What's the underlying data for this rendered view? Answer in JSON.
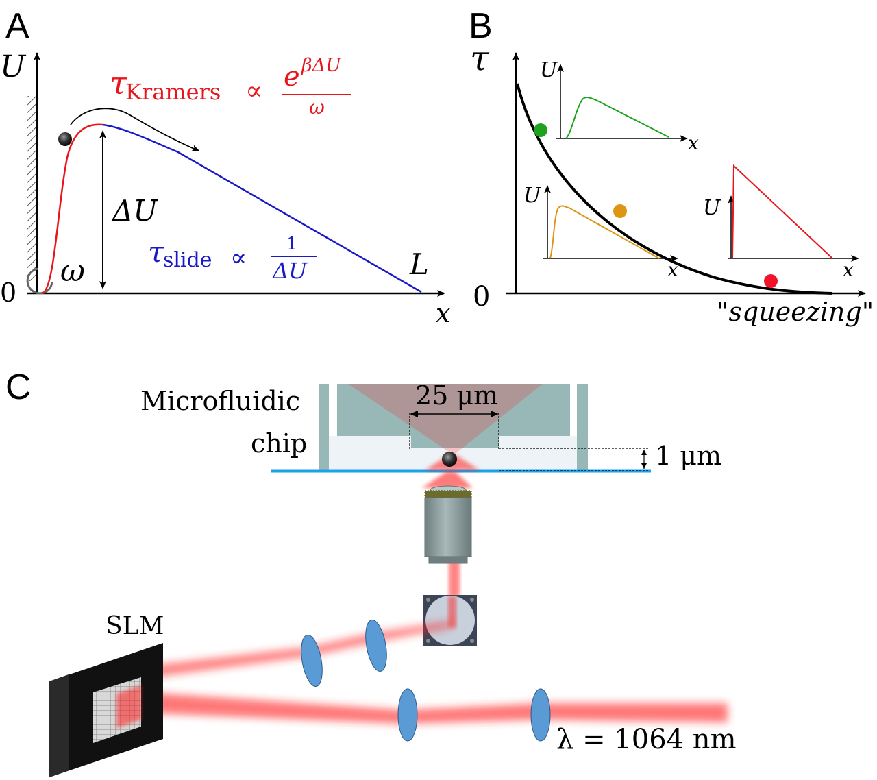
{
  "panel_a": {
    "letter": "A",
    "y_axis_label": "U",
    "x_axis_label": "x",
    "origin_label": "0",
    "omega_label": "ω",
    "end_label": "L",
    "barrier_label": "ΔU",
    "kramers": {
      "tau": "τ",
      "subscript": "Kramers",
      "proportional": "∝",
      "numerator_base": "e",
      "numerator_exponent": "βΔU",
      "denominator": "ω",
      "color": "#e8161c"
    },
    "slide": {
      "tau": "τ",
      "subscript": "slide",
      "proportional": "∝",
      "numerator": "1",
      "denominator": "ΔU",
      "color": "#1a19c8"
    }
  },
  "panel_b": {
    "letter": "B",
    "y_axis_label": "τ",
    "origin_label": "0",
    "x_axis_label": "\"squeezing\"",
    "insets": [
      {
        "y_label": "U",
        "x_label": "x",
        "color": "#1fa31f"
      },
      {
        "y_label": "U",
        "x_label": "x",
        "color": "#dc9614"
      },
      {
        "y_label": "U",
        "x_label": "x",
        "color": "#e8161c"
      }
    ]
  },
  "panel_c": {
    "letter": "C",
    "chip_label_line1": "Microfluidic",
    "chip_label_line2": "chip",
    "width_label": "25 μm",
    "height_label": "1 μm",
    "slm_label": "SLM",
    "wavelength_label": "λ = 1064 nm"
  },
  "colors": {
    "laser": "#ff1a1a",
    "lens": "#5b9bd5",
    "coverslip": "#1aa3e8",
    "chip": "#98b8b8"
  }
}
